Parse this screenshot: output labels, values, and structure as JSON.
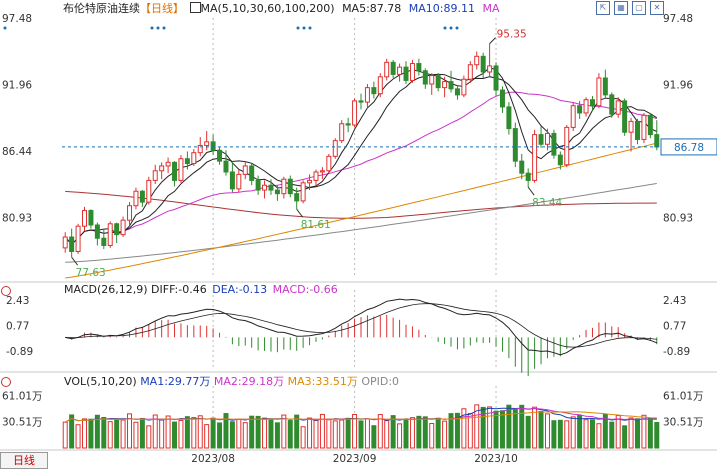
{
  "header": {
    "instrument": "布伦特原油连续",
    "period": "【日线】",
    "ma_label": "MA(5,10,30,60,100,200)",
    "ma5_label": "MA5:87.78",
    "ma10_label": "MA10:89.11",
    "ma_more": "MA"
  },
  "macd_header": {
    "title": "MACD(26,12,9)",
    "diff": "DIFF:-0.46",
    "dea": "DEA:-0.13",
    "macd": "MACD:-0.66"
  },
  "vol_header": {
    "title": "VOL(5,10,20)",
    "ma1": "MA1:29.77万",
    "ma2": "MA2:29.18万",
    "ma3": "MA3:33.51万",
    "opid": "OPID:0"
  },
  "footer": {
    "period_tab": "日线"
  },
  "colors": {
    "up": "#e03030",
    "down": "#2e8b2e",
    "ma5": "#222222",
    "ma10": "#222222",
    "ma30": "#cc33cc",
    "ma60": "#dd8800",
    "ma100": "#888888",
    "ma200": "#aa3333",
    "annot_high": "#cc3333",
    "annot_low": "#4caf50",
    "last_price": "#1a6fb5"
  },
  "chart_data": [
    {
      "type": "candlestick",
      "title": "布伦特原油连续",
      "y_ticks": [
        "97.48",
        "91.96",
        "86.44",
        "80.93"
      ],
      "ylim": [
        75.9,
        97.48
      ],
      "x_ticks": [
        "2023/08",
        "2023/09",
        "2023/10"
      ],
      "x_tick_index": [
        23,
        45,
        67
      ],
      "last_price": "86.78",
      "annotations": [
        {
          "label": "95.35",
          "index": 66,
          "value": 95.35
        },
        {
          "label": "81.61",
          "index": 36,
          "value": 81.61
        },
        {
          "label": "83.44",
          "index": 72,
          "value": 83.44
        },
        {
          "label": "77.63",
          "index": 1,
          "value": 77.63
        }
      ],
      "candles": [
        [
          78.4,
          79.7,
          78.0,
          79.3
        ],
        [
          79.3,
          80.0,
          77.63,
          78.1
        ],
        [
          78.1,
          80.4,
          77.9,
          80.2
        ],
        [
          80.2,
          81.8,
          79.8,
          81.5
        ],
        [
          81.5,
          81.6,
          80.0,
          80.3
        ],
        [
          80.3,
          80.5,
          78.6,
          79.2
        ],
        [
          79.2,
          80.0,
          78.3,
          78.6
        ],
        [
          78.6,
          80.6,
          78.4,
          80.4
        ],
        [
          80.4,
          80.5,
          78.8,
          79.5
        ],
        [
          79.5,
          81.0,
          79.3,
          80.7
        ],
        [
          80.7,
          82.2,
          80.3,
          81.9
        ],
        [
          81.9,
          83.4,
          81.6,
          83.1
        ],
        [
          83.1,
          83.2,
          81.8,
          82.2
        ],
        [
          82.2,
          84.3,
          82.0,
          84.0
        ],
        [
          84.0,
          85.3,
          83.7,
          84.8
        ],
        [
          84.8,
          85.5,
          84.1,
          85.2
        ],
        [
          85.2,
          85.9,
          84.6,
          85.5
        ],
        [
          85.5,
          85.6,
          83.5,
          84.0
        ],
        [
          84.0,
          86.1,
          83.8,
          85.8
        ],
        [
          85.8,
          86.4,
          84.9,
          85.4
        ],
        [
          85.4,
          86.6,
          85.2,
          86.3
        ],
        [
          86.3,
          87.6,
          86.0,
          86.9
        ],
        [
          86.9,
          88.1,
          86.5,
          87.2
        ],
        [
          87.2,
          87.8,
          86.1,
          86.5
        ],
        [
          86.5,
          86.8,
          85.3,
          85.6
        ],
        [
          85.6,
          86.5,
          84.4,
          84.7
        ],
        [
          84.7,
          85.6,
          83.0,
          83.3
        ],
        [
          83.3,
          84.9,
          83.0,
          84.5
        ],
        [
          84.5,
          85.6,
          84.1,
          85.2
        ],
        [
          85.2,
          85.4,
          83.6,
          84.0
        ],
        [
          84.0,
          84.4,
          82.8,
          83.2
        ],
        [
          83.2,
          84.0,
          82.5,
          83.6
        ],
        [
          83.6,
          84.1,
          82.8,
          83.2
        ],
        [
          83.2,
          83.6,
          82.3,
          82.9
        ],
        [
          82.9,
          84.3,
          82.5,
          84.1
        ],
        [
          84.1,
          84.4,
          82.6,
          82.9
        ],
        [
          82.9,
          83.4,
          81.61,
          82.3
        ],
        [
          82.3,
          84.0,
          82.1,
          83.8
        ],
        [
          83.8,
          84.5,
          83.2,
          84.0
        ],
        [
          84.0,
          84.9,
          83.5,
          84.7
        ],
        [
          84.7,
          85.1,
          84.1,
          84.8
        ],
        [
          84.8,
          86.2,
          84.6,
          86.0
        ],
        [
          86.0,
          87.5,
          85.8,
          87.3
        ],
        [
          87.3,
          89.0,
          87.1,
          88.7
        ],
        [
          88.7,
          89.2,
          88.0,
          88.6
        ],
        [
          88.6,
          90.8,
          88.4,
          90.6
        ],
        [
          90.6,
          91.2,
          89.9,
          90.5
        ],
        [
          90.5,
          92.0,
          90.1,
          91.7
        ],
        [
          91.7,
          92.2,
          90.8,
          91.2
        ],
        [
          91.2,
          92.9,
          90.9,
          92.6
        ],
        [
          92.6,
          94.1,
          92.3,
          93.8
        ],
        [
          93.8,
          94.0,
          92.5,
          92.8
        ],
        [
          92.8,
          93.7,
          92.2,
          93.4
        ],
        [
          93.4,
          93.9,
          92.0,
          92.3
        ],
        [
          92.3,
          94.0,
          92.1,
          93.7
        ],
        [
          93.7,
          94.1,
          92.7,
          93.1
        ],
        [
          93.1,
          93.3,
          91.6,
          92.0
        ],
        [
          92.0,
          92.9,
          91.1,
          92.7
        ],
        [
          92.7,
          92.9,
          91.4,
          91.7
        ],
        [
          91.7,
          92.6,
          90.9,
          92.2
        ],
        [
          92.2,
          93.1,
          91.3,
          91.6
        ],
        [
          91.6,
          91.9,
          90.7,
          91.1
        ],
        [
          91.1,
          92.7,
          90.9,
          92.4
        ],
        [
          92.4,
          93.9,
          92.1,
          93.6
        ],
        [
          93.6,
          94.7,
          93.2,
          94.3
        ],
        [
          94.3,
          94.6,
          92.5,
          93.0
        ],
        [
          93.0,
          95.35,
          92.6,
          93.5
        ],
        [
          93.5,
          93.8,
          91.0,
          91.5
        ],
        [
          91.5,
          91.8,
          89.6,
          90.1
        ],
        [
          90.1,
          90.5,
          87.8,
          88.3
        ],
        [
          88.3,
          88.8,
          85.1,
          85.6
        ],
        [
          85.6,
          86.2,
          84.1,
          84.6
        ],
        [
          84.6,
          85.0,
          83.44,
          84.0
        ],
        [
          84.0,
          88.2,
          83.8,
          87.8
        ],
        [
          87.8,
          88.5,
          86.7,
          87.0
        ],
        [
          87.0,
          88.3,
          86.5,
          87.9
        ],
        [
          87.9,
          88.2,
          85.8,
          86.1
        ],
        [
          86.1,
          86.4,
          84.9,
          85.3
        ],
        [
          85.3,
          88.6,
          85.1,
          88.4
        ],
        [
          88.4,
          90.5,
          88.1,
          90.2
        ],
        [
          90.2,
          90.6,
          89.1,
          89.6
        ],
        [
          89.6,
          90.9,
          89.3,
          90.7
        ],
        [
          90.7,
          91.0,
          89.8,
          90.2
        ],
        [
          90.2,
          92.9,
          90.0,
          92.5
        ],
        [
          92.5,
          93.2,
          90.8,
          91.1
        ],
        [
          91.1,
          91.3,
          89.2,
          89.5
        ],
        [
          89.5,
          90.9,
          89.2,
          90.6
        ],
        [
          90.6,
          90.8,
          87.7,
          88.0
        ],
        [
          88.0,
          89.2,
          86.4,
          88.9
        ],
        [
          88.9,
          89.1,
          87.0,
          87.4
        ],
        [
          87.4,
          89.6,
          87.1,
          89.4
        ],
        [
          89.4,
          89.6,
          87.5,
          87.8
        ],
        [
          87.8,
          89.0,
          86.5,
          86.78
        ]
      ]
    },
    {
      "type": "line",
      "title": "MACD(26,12,9)",
      "y_ticks": [
        "2.43",
        "0.77",
        "-0.89"
      ],
      "ylim": [
        -2.0,
        2.7
      ],
      "series": [
        {
          "name": "DIFF",
          "last": -0.46
        },
        {
          "name": "DEA",
          "last": -0.13
        },
        {
          "name": "MACD",
          "last": -0.66
        }
      ]
    },
    {
      "type": "bar",
      "title": "VOL(5,10,20)",
      "y_ticks": [
        "61.01万",
        "30.51万"
      ],
      "ylim": [
        0,
        65
      ],
      "series": [
        {
          "name": "MA1",
          "last": 29.77
        },
        {
          "name": "MA2",
          "last": 29.18
        },
        {
          "name": "MA3",
          "last": 33.51
        }
      ]
    }
  ]
}
